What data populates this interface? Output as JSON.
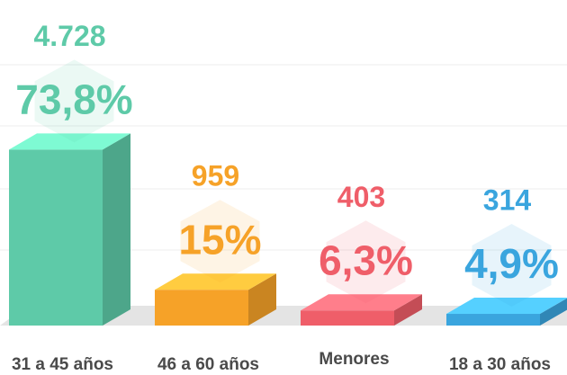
{
  "chart_data": {
    "type": "bar3d",
    "categories": [
      "31 a 45 años",
      "46 a 60 años",
      "Menores",
      "18 a 30 años"
    ],
    "values": [
      73.8,
      15,
      6.3,
      4.9
    ],
    "value_labels": [
      "73,8%",
      "15%",
      "6,3%",
      "4,9%"
    ],
    "counts": [
      4728,
      959,
      403,
      314
    ],
    "count_labels": [
      "4.728",
      "959",
      "403",
      "314"
    ],
    "colors": [
      "#5ecaa8",
      "#f6a228",
      "#ef5e69",
      "#3aa5de"
    ],
    "ylim": [
      0,
      100
    ]
  }
}
